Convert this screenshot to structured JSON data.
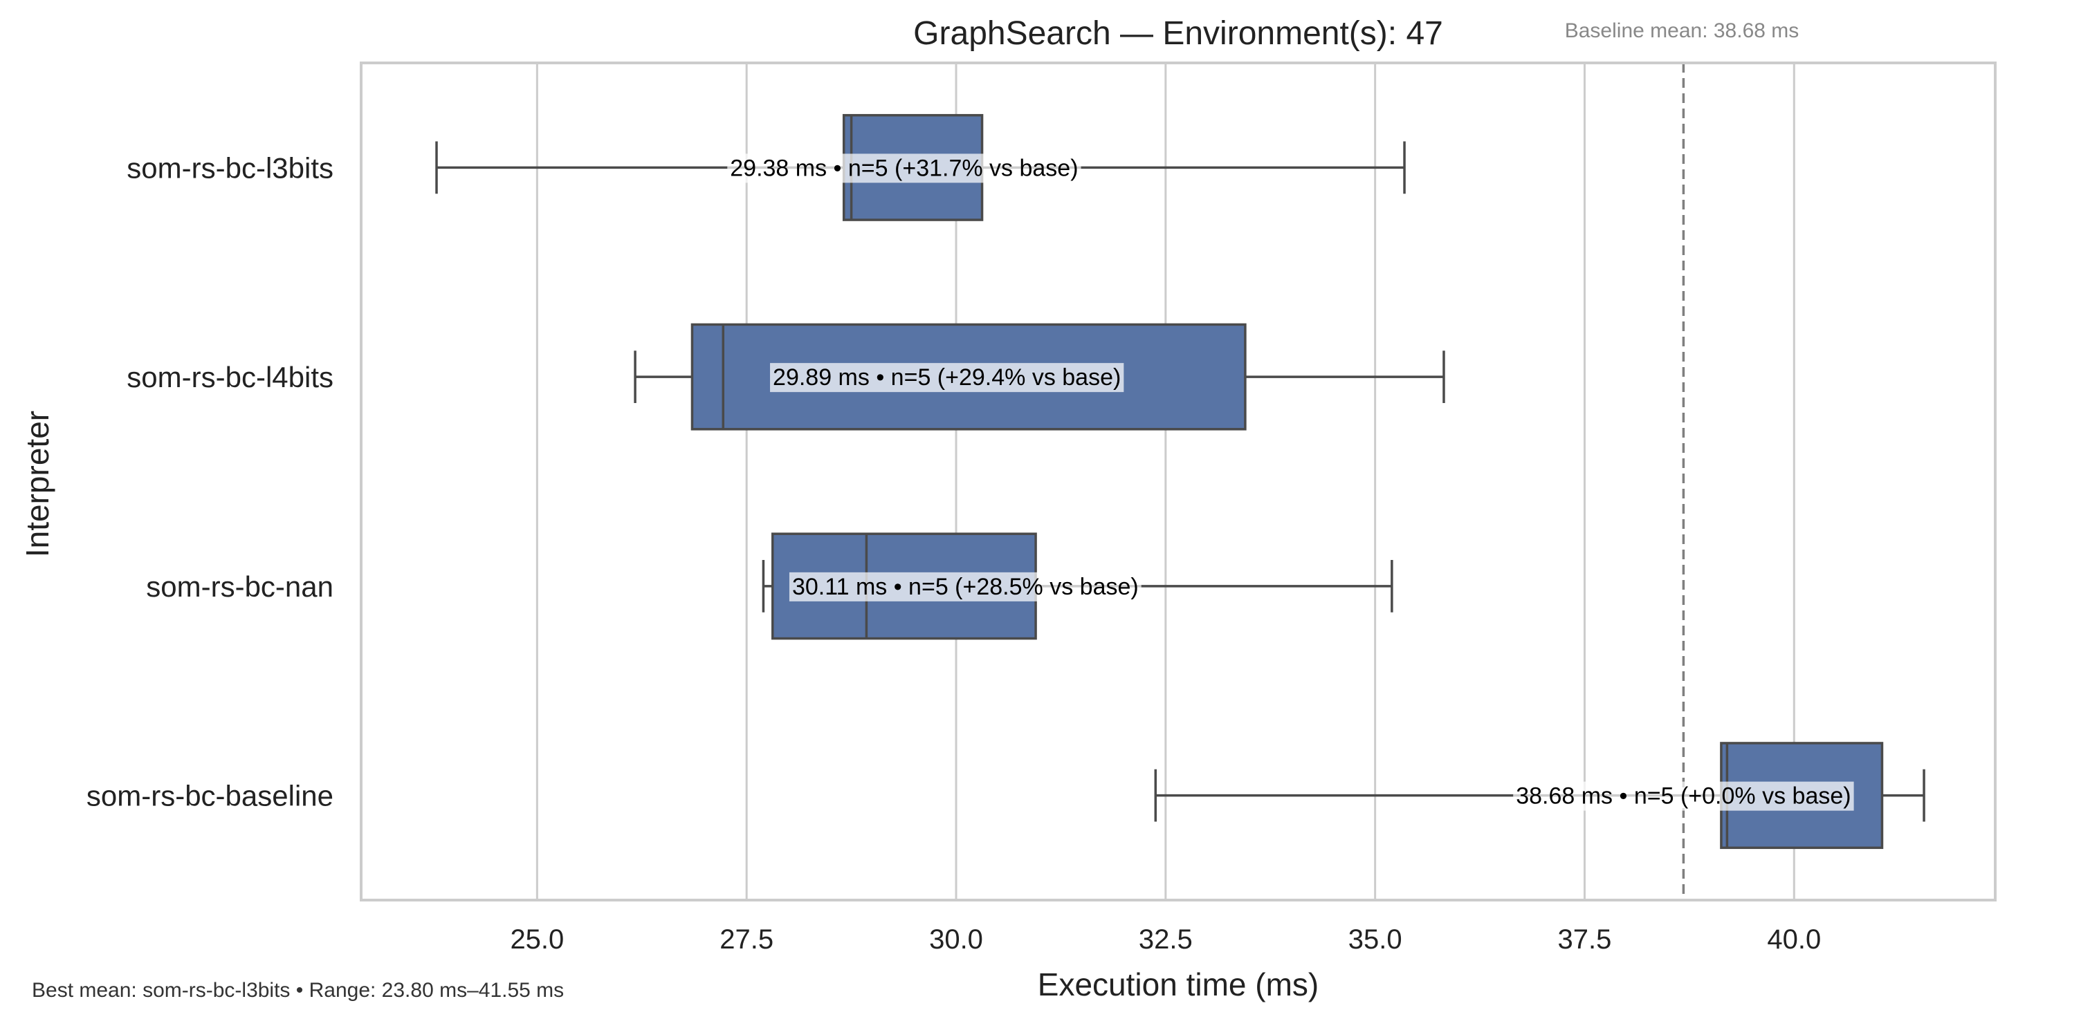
{
  "chart_data": {
    "type": "boxplot",
    "title": "GraphSearch — Environment(s): 47",
    "xlabel": "Execution time (ms)",
    "ylabel": "Interpreter",
    "xlim": [
      22.9,
      42.4
    ],
    "xticks": [
      "25.0",
      "27.5",
      "30.0",
      "32.5",
      "35.0",
      "37.5",
      "40.0"
    ],
    "grid": "vertical",
    "box_color": "#5874a5",
    "baseline": {
      "value": 38.68,
      "label": "Baseline mean: 38.68 ms"
    },
    "categories": [
      "som-rs-bc-l3bits",
      "som-rs-bc-l4bits",
      "som-rs-bc-nan",
      "som-rs-bc-baseline"
    ],
    "boxes": [
      {
        "name": "som-rs-bc-l3bits",
        "whisker_low": 23.8,
        "q1": 28.66,
        "median": 28.75,
        "q3": 30.31,
        "whisker_high": 35.35,
        "mean": 29.38,
        "label": "29.38 ms • n=5 (+31.7% vs base)"
      },
      {
        "name": "som-rs-bc-l4bits",
        "whisker_low": 26.17,
        "q1": 26.85,
        "median": 27.22,
        "q3": 33.45,
        "whisker_high": 35.82,
        "mean": 29.89,
        "label": "29.89 ms • n=5 (+29.4% vs base)"
      },
      {
        "name": "som-rs-bc-nan",
        "whisker_low": 27.7,
        "q1": 27.81,
        "median": 28.93,
        "q3": 30.95,
        "whisker_high": 35.2,
        "mean": 30.11,
        "label": "30.11 ms • n=5 (+28.5% vs base)"
      },
      {
        "name": "som-rs-bc-baseline",
        "whisker_low": 32.38,
        "q1": 39.13,
        "median": 39.2,
        "q3": 41.05,
        "whisker_high": 41.55,
        "mean": 38.68,
        "label": "38.68 ms • n=5 (+0.0% vs base)"
      }
    ],
    "footer": "Best mean: som-rs-bc-l3bits • Range: 23.80 ms–41.55 ms"
  }
}
